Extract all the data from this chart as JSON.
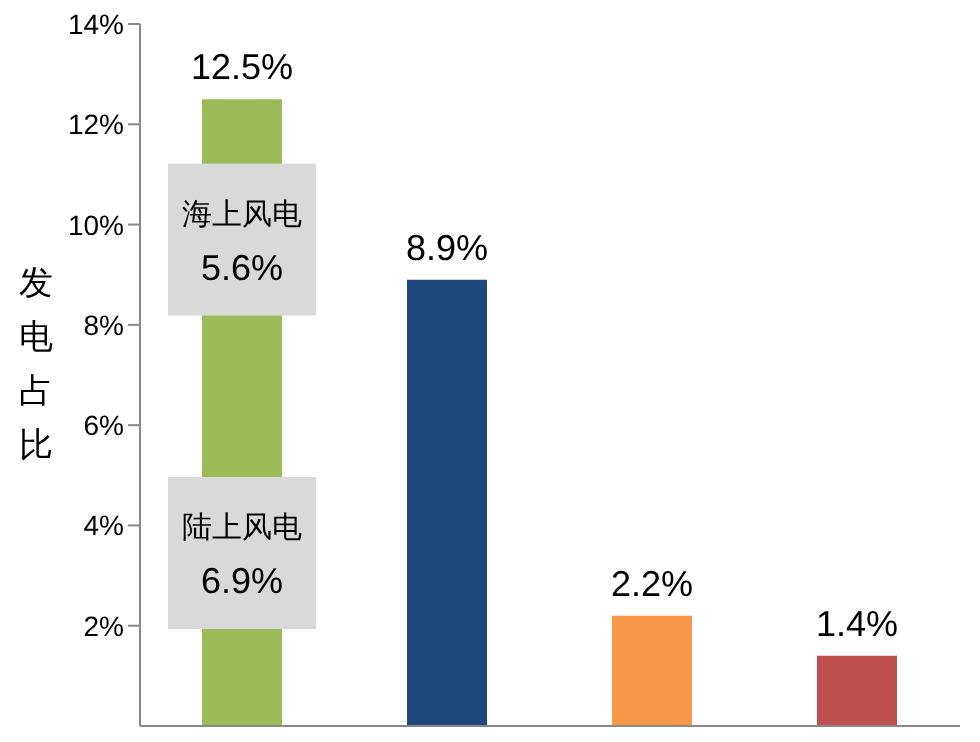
{
  "chart_data": {
    "type": "bar",
    "ylabel": "发电占比",
    "categories": [
      null,
      null,
      null,
      null
    ],
    "stacked": true,
    "series": [
      {
        "name": "陆上风电",
        "colors": [
          "#9bbb59",
          "#1f497d",
          "#f79646",
          "#c0504d"
        ],
        "values": [
          6.9,
          8.9,
          2.2,
          1.4
        ],
        "value_labels": [
          "6.9%",
          "8.9%",
          "2.2%",
          "1.4%"
        ]
      },
      {
        "name": "海上风电",
        "color": "#9bbb59",
        "values": [
          5.6,
          null,
          null,
          null
        ],
        "value_labels": [
          "5.6%",
          null,
          null,
          null
        ]
      }
    ],
    "totals": [
      "12.5%",
      null,
      null,
      null
    ],
    "ylim": [
      0,
      14
    ],
    "yticks": [
      {
        "value": 2,
        "label": "2%"
      },
      {
        "value": 4,
        "label": "4%"
      },
      {
        "value": 6,
        "label": "6%"
      },
      {
        "value": 8,
        "label": "8%"
      },
      {
        "value": 10,
        "label": "10%"
      },
      {
        "value": 12,
        "label": "12%"
      },
      {
        "value": 14,
        "label": "14%"
      }
    ],
    "grid": false,
    "legend": false
  }
}
